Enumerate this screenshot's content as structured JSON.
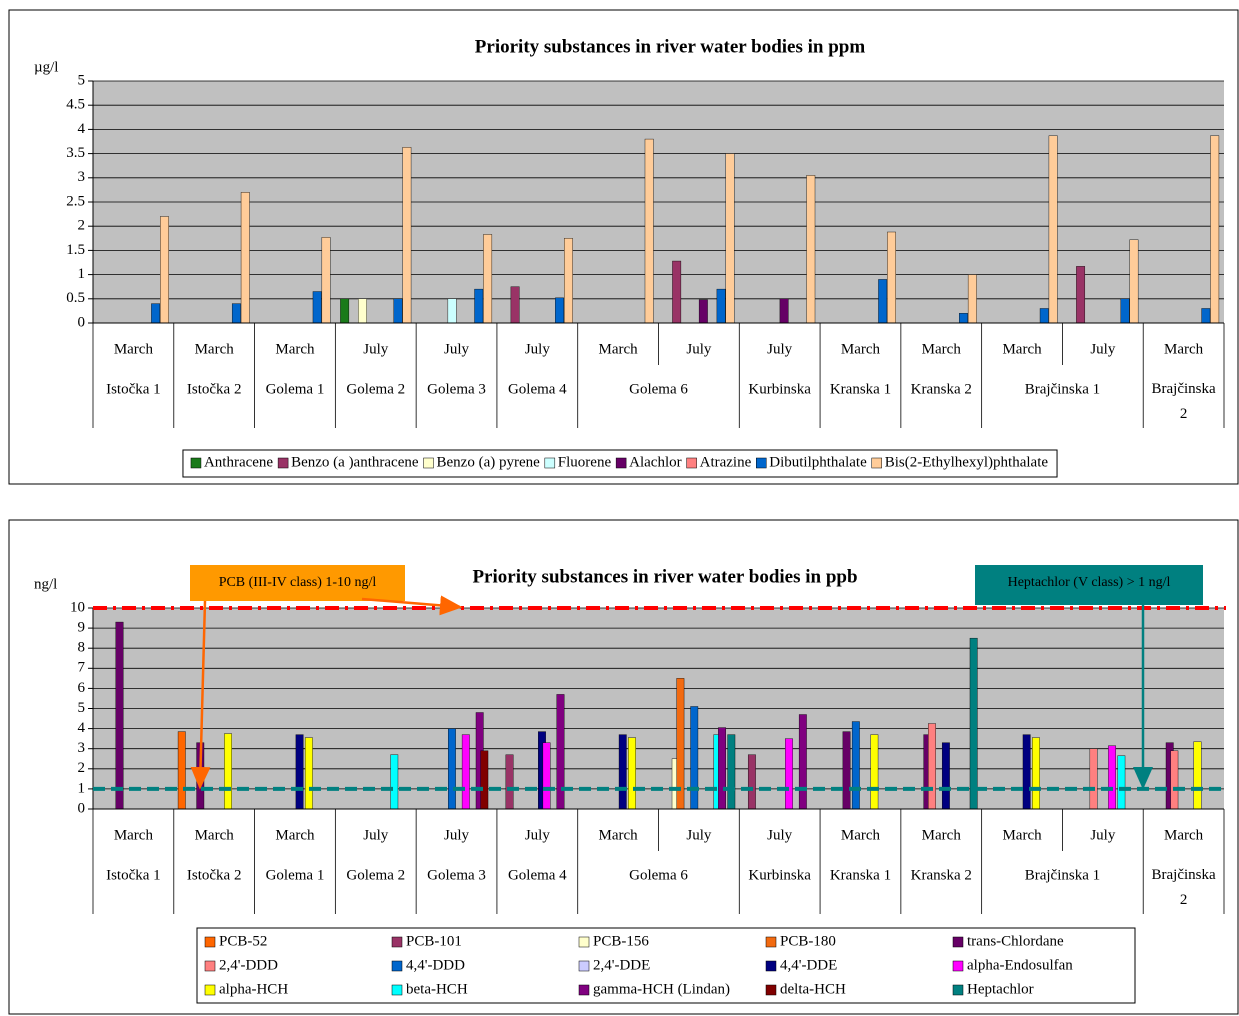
{
  "chart_data": [
    {
      "type": "bar",
      "title": "Priority substances in river water bodies in ppm",
      "y_label": "µg/l",
      "categories": [
        "March",
        "March",
        "March",
        "July",
        "July",
        "July",
        "March",
        "July",
        "July",
        "March",
        "March",
        "March",
        "July",
        "March"
      ],
      "sites": [
        "Istočka 1",
        "Istočka 2",
        "Golema 1",
        "Golema 2",
        "Golema 3",
        "Golema 4",
        "Golema 6",
        null,
        "Kurbinska",
        "Kranska 1",
        "Kranska 2",
        "Brajčinska 1",
        null,
        "Brajčinska 2"
      ],
      "ylim": [
        0,
        5
      ],
      "yticks": [
        0,
        0.5,
        1,
        1.5,
        2,
        2.5,
        3,
        3.5,
        4,
        4.5,
        5
      ],
      "grid": true,
      "plot_color": "#c0c0c0",
      "legend": "bottom",
      "series": [
        {
          "name": "Anthracene",
          "color": "#1a7a1a",
          "values": [
            null,
            null,
            null,
            0.5,
            null,
            null,
            null,
            null,
            null,
            null,
            null,
            null,
            null,
            null
          ]
        },
        {
          "name": "Benzo (a )anthracene",
          "color": "#993366",
          "values": [
            null,
            null,
            null,
            null,
            null,
            0.75,
            null,
            1.28,
            null,
            null,
            null,
            null,
            1.17,
            null
          ]
        },
        {
          "name": "Benzo (a) pyrene",
          "color": "#ffffcc",
          "values": [
            null,
            null,
            null,
            0.5,
            null,
            null,
            null,
            null,
            null,
            null,
            null,
            null,
            null,
            null
          ]
        },
        {
          "name": "Fluorene",
          "color": "#ccffff",
          "values": [
            null,
            null,
            null,
            null,
            0.5,
            null,
            null,
            null,
            null,
            null,
            null,
            null,
            null,
            null
          ]
        },
        {
          "name": "Alachlor",
          "color": "#660066",
          "values": [
            null,
            null,
            null,
            null,
            null,
            null,
            null,
            0.48,
            0.5,
            null,
            null,
            null,
            null,
            null
          ]
        },
        {
          "name": "Atrazine",
          "color": "#ff8080",
          "values": [
            null,
            null,
            null,
            null,
            null,
            null,
            null,
            null,
            null,
            null,
            null,
            null,
            null,
            null
          ]
        },
        {
          "name": "Dibutilphthalate",
          "color": "#0066cc",
          "values": [
            0.4,
            0.4,
            0.65,
            0.5,
            0.7,
            0.52,
            null,
            0.7,
            null,
            0.9,
            0.2,
            0.3,
            0.5,
            0.3
          ]
        },
        {
          "name": "Bis(2-Ethylhexyl)phthalate",
          "color": "#ffcc99",
          "values": [
            2.2,
            2.7,
            1.77,
            3.63,
            1.83,
            1.75,
            3.8,
            3.5,
            3.05,
            1.88,
            1.0,
            3.87,
            1.72,
            3.87
          ]
        }
      ]
    },
    {
      "type": "bar",
      "title": "Priority substances in river water bodies in ppb",
      "y_label": "ng/l",
      "categories": [
        "March",
        "March",
        "March",
        "July",
        "July",
        "July",
        "March",
        "July",
        "July",
        "March",
        "March",
        "March",
        "July",
        "March"
      ],
      "sites": [
        "Istočka 1",
        "Istočka 2",
        "Golema 1",
        "Golema 2",
        "Golema 3",
        "Golema 4",
        "Golema 6",
        null,
        "Kurbinska",
        "Kranska 1",
        "Kranska 2",
        "Brajčinska 1",
        null,
        "Brajčinska 2"
      ],
      "ylim": [
        0,
        10
      ],
      "yticks": [
        0,
        1,
        2,
        3,
        4,
        5,
        6,
        7,
        8,
        9,
        10
      ],
      "grid": true,
      "plot_color": "#c0c0c0",
      "legend": "bottom",
      "reference_lines": [
        {
          "value": 10,
          "color": "#ff0000",
          "style": "dashdot"
        },
        {
          "value": 1,
          "color": "#008080",
          "style": "dashed"
        }
      ],
      "annotations": [
        {
          "text": "PCB (III-IV class) 1-10 ng/l",
          "color": "#ff9900"
        },
        {
          "text": "Heptachlor  (V class) > 1 ng/l",
          "color": "#008080"
        }
      ],
      "series": [
        {
          "name": "PCB-52",
          "color": "#ff6600",
          "values": [
            null,
            3.85,
            null,
            null,
            null,
            null,
            null,
            null,
            null,
            null,
            null,
            null,
            null,
            null
          ]
        },
        {
          "name": "PCB-101",
          "color": "#993366",
          "values": [
            null,
            null,
            null,
            null,
            null,
            2.7,
            null,
            null,
            2.7,
            null,
            null,
            null,
            null,
            null
          ]
        },
        {
          "name": "PCB-156",
          "color": "#ffffcc",
          "values": [
            null,
            null,
            null,
            null,
            null,
            null,
            null,
            2.5,
            null,
            null,
            null,
            null,
            null,
            null
          ]
        },
        {
          "name": "PCB-180",
          "color": "#f26a10",
          "values": [
            null,
            null,
            null,
            null,
            null,
            null,
            null,
            6.5,
            null,
            null,
            null,
            null,
            null,
            null
          ]
        },
        {
          "name": "trans-Chlordane",
          "color": "#660066",
          "values": [
            9.3,
            3.3,
            null,
            null,
            null,
            null,
            null,
            null,
            null,
            3.85,
            3.7,
            null,
            null,
            3.3
          ]
        },
        {
          "name": "2,4'-DDD",
          "color": "#ff8080",
          "values": [
            null,
            null,
            null,
            null,
            null,
            null,
            null,
            null,
            null,
            null,
            4.25,
            null,
            3.0,
            2.9
          ]
        },
        {
          "name": "4,4'-DDD",
          "color": "#0066cc",
          "values": [
            null,
            null,
            null,
            null,
            4.0,
            null,
            null,
            5.1,
            null,
            4.35,
            null,
            null,
            null,
            null
          ]
        },
        {
          "name": "2,4'-DDE",
          "color": "#ccccff",
          "values": [
            null,
            null,
            null,
            null,
            null,
            null,
            null,
            null,
            null,
            null,
            null,
            null,
            null,
            null
          ]
        },
        {
          "name": "4,4'-DDE",
          "color": "#000080",
          "values": [
            null,
            null,
            3.7,
            null,
            null,
            3.85,
            3.7,
            null,
            null,
            null,
            3.3,
            3.7,
            null,
            null
          ]
        },
        {
          "name": "alpha-Endosulfan",
          "color": "#ff00ff",
          "values": [
            null,
            null,
            null,
            null,
            3.7,
            3.3,
            null,
            null,
            3.5,
            null,
            null,
            null,
            3.15,
            null
          ]
        },
        {
          "name": "alpha-HCH",
          "color": "#ffff00",
          "values": [
            null,
            3.75,
            3.55,
            null,
            null,
            null,
            3.55,
            null,
            null,
            3.7,
            null,
            3.55,
            null,
            3.35
          ]
        },
        {
          "name": "beta-HCH",
          "color": "#00ffff",
          "values": [
            null,
            null,
            null,
            2.7,
            null,
            null,
            null,
            3.7,
            null,
            null,
            null,
            null,
            2.65,
            null
          ]
        },
        {
          "name": "gamma-HCH (Lindan)",
          "color": "#800080",
          "values": [
            null,
            null,
            null,
            null,
            4.8,
            5.7,
            null,
            4.05,
            4.7,
            null,
            null,
            null,
            null,
            null
          ]
        },
        {
          "name": "delta-HCH",
          "color": "#800000",
          "values": [
            null,
            null,
            null,
            null,
            2.9,
            null,
            null,
            null,
            null,
            null,
            null,
            null,
            null,
            null
          ]
        },
        {
          "name": "Heptachlor",
          "color": "#008080",
          "values": [
            null,
            null,
            null,
            null,
            null,
            null,
            null,
            3.7,
            null,
            null,
            8.5,
            null,
            null,
            null
          ]
        }
      ]
    }
  ]
}
